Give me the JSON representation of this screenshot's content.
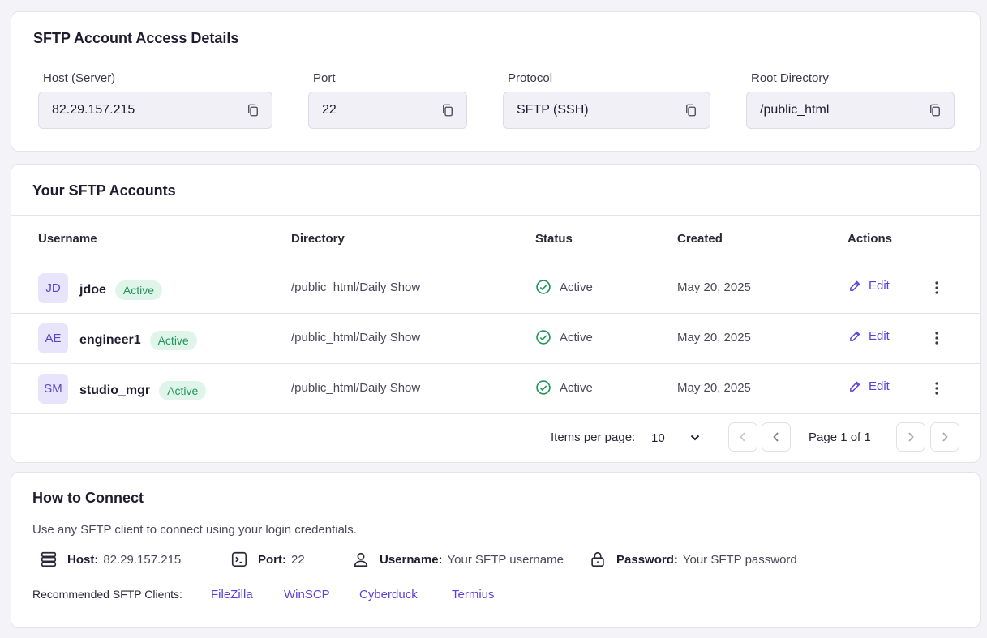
{
  "access": {
    "title": "SFTP Account Access Details",
    "fields": [
      {
        "label": "Host (Server)",
        "value": "82.29.157.215"
      },
      {
        "label": "Port",
        "value": "22"
      },
      {
        "label": "Protocol",
        "value": "SFTP (SSH)"
      },
      {
        "label": "Root Directory",
        "value": "/public_html"
      }
    ]
  },
  "accounts": {
    "title": "Your SFTP Accounts",
    "columns": {
      "username": "Username",
      "directory": "Directory",
      "status": "Status",
      "created": "Created",
      "actions": "Actions"
    },
    "rows": [
      {
        "initials": "JD",
        "username": "jdoe",
        "badge": "Active",
        "directory": "/public_html/Daily Show",
        "status": "Active",
        "created": "May 20, 2025",
        "edit": "Edit"
      },
      {
        "initials": "AE",
        "username": "engineer1",
        "badge": "Active",
        "directory": "/public_html/Daily Show",
        "status": "Active",
        "created": "May 20, 2025",
        "edit": "Edit"
      },
      {
        "initials": "SM",
        "username": "studio_mgr",
        "badge": "Active",
        "directory": "/public_html/Daily Show",
        "status": "Active",
        "created": "May 20, 2025",
        "edit": "Edit"
      }
    ],
    "pagination": {
      "items_per_page_label": "Items per page:",
      "items_per_page": "10",
      "page_info": "Page 1 of 1"
    }
  },
  "connect": {
    "title": "How to Connect",
    "description": "Use any SFTP client to connect using your login credentials.",
    "host_label": "Host:",
    "host_value": "82.29.157.215",
    "port_label": "Port:",
    "port_value": "22",
    "username_label": "Username:",
    "username_value": "Your SFTP username",
    "password_label": "Password:",
    "password_value": "Your SFTP password",
    "recommended_label": "Recommended SFTP Clients:",
    "clients": [
      "FileZilla",
      "WinSCP",
      "Cyberduck",
      "Termius"
    ]
  },
  "icons": {
    "copy": "copy-icon",
    "status_ok": "check-circle-icon",
    "edit": "pencil-icon",
    "more": "more-vertical-icon",
    "server": "server-icon",
    "port": "terminal-icon",
    "user": "user-icon",
    "password": "lock-icon"
  },
  "colors": {
    "accent": "#5b3fd8",
    "success": "#22955a",
    "avatar_bg": "#e8e4fb"
  }
}
